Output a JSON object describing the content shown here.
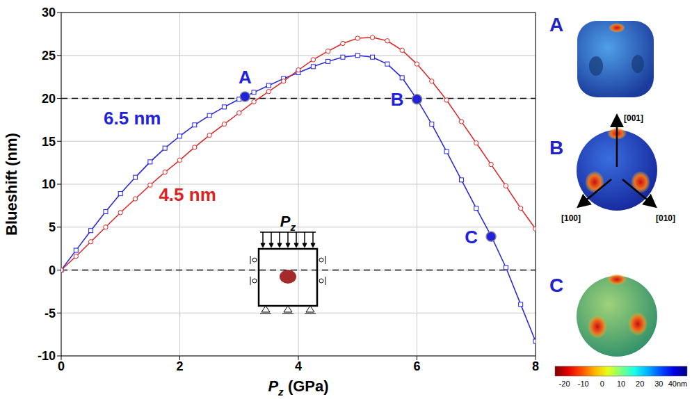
{
  "chart_data": {
    "type": "line",
    "x_label": "Pz (GPa)",
    "y_label": "Blueshift (nm)",
    "x": [
      0,
      0.25,
      0.5,
      0.75,
      1,
      1.25,
      1.5,
      1.75,
      2,
      2.25,
      2.5,
      2.75,
      3,
      3.25,
      3.5,
      3.75,
      4,
      4.25,
      4.5,
      4.75,
      5,
      5.25,
      5.5,
      5.75,
      6,
      6.25,
      6.5,
      6.75,
      7,
      7.25,
      7.5,
      7.75,
      8
    ],
    "xlim": [
      0,
      8
    ],
    "xticks": [
      0,
      2,
      4,
      6,
      8
    ],
    "ylim": [
      -10,
      30
    ],
    "yticks": [
      -10,
      -5,
      0,
      5,
      10,
      15,
      20,
      25,
      30
    ],
    "grid": true,
    "series": [
      {
        "name": "6.5 nm",
        "color": "#2222dd",
        "marker": "square",
        "values": [
          0,
          2.3,
          4.6,
          6.8,
          8.9,
          10.8,
          12.6,
          14.2,
          15.6,
          16.9,
          18.0,
          19.0,
          19.9,
          20.7,
          21.5,
          22.3,
          23.0,
          23.7,
          24.3,
          24.8,
          25.0,
          24.8,
          24.0,
          22.4,
          19.9,
          17.0,
          13.8,
          10.5,
          7.2,
          4.0,
          0.3,
          -4.0,
          -8.3
        ]
      },
      {
        "name": "4.5 nm",
        "color": "#dd2222",
        "marker": "circle",
        "values": [
          0,
          1.6,
          3.3,
          5.0,
          6.7,
          8.3,
          9.9,
          11.4,
          12.8,
          14.3,
          15.7,
          17.0,
          18.3,
          19.6,
          20.8,
          22.0,
          23.3,
          24.5,
          25.5,
          26.4,
          27.0,
          27.1,
          26.7,
          25.6,
          24.0,
          22.0,
          19.8,
          17.3,
          14.8,
          12.3,
          9.8,
          7.2,
          4.8
        ]
      }
    ],
    "reference_lines": {
      "y": [
        20,
        0
      ],
      "line_style": "dashed"
    },
    "annotations": [
      {
        "label": "A",
        "x": 3.1,
        "y": 20.2
      },
      {
        "label": "B",
        "x": 6.0,
        "y": 19.9
      },
      {
        "label": "C",
        "x": 7.25,
        "y": 3.9
      }
    ],
    "inset": {
      "label": "Pz"
    },
    "panels": [
      {
        "label": "A"
      },
      {
        "label": "B",
        "axes": [
          "[001]",
          "[100]",
          "[010]"
        ]
      },
      {
        "label": "C"
      }
    ],
    "colorbar": {
      "range": [
        -25,
        45
      ],
      "ticks": [
        -20,
        -10,
        0,
        10,
        20,
        30,
        {
          "value": 40,
          "label": "40nm"
        }
      ]
    }
  }
}
